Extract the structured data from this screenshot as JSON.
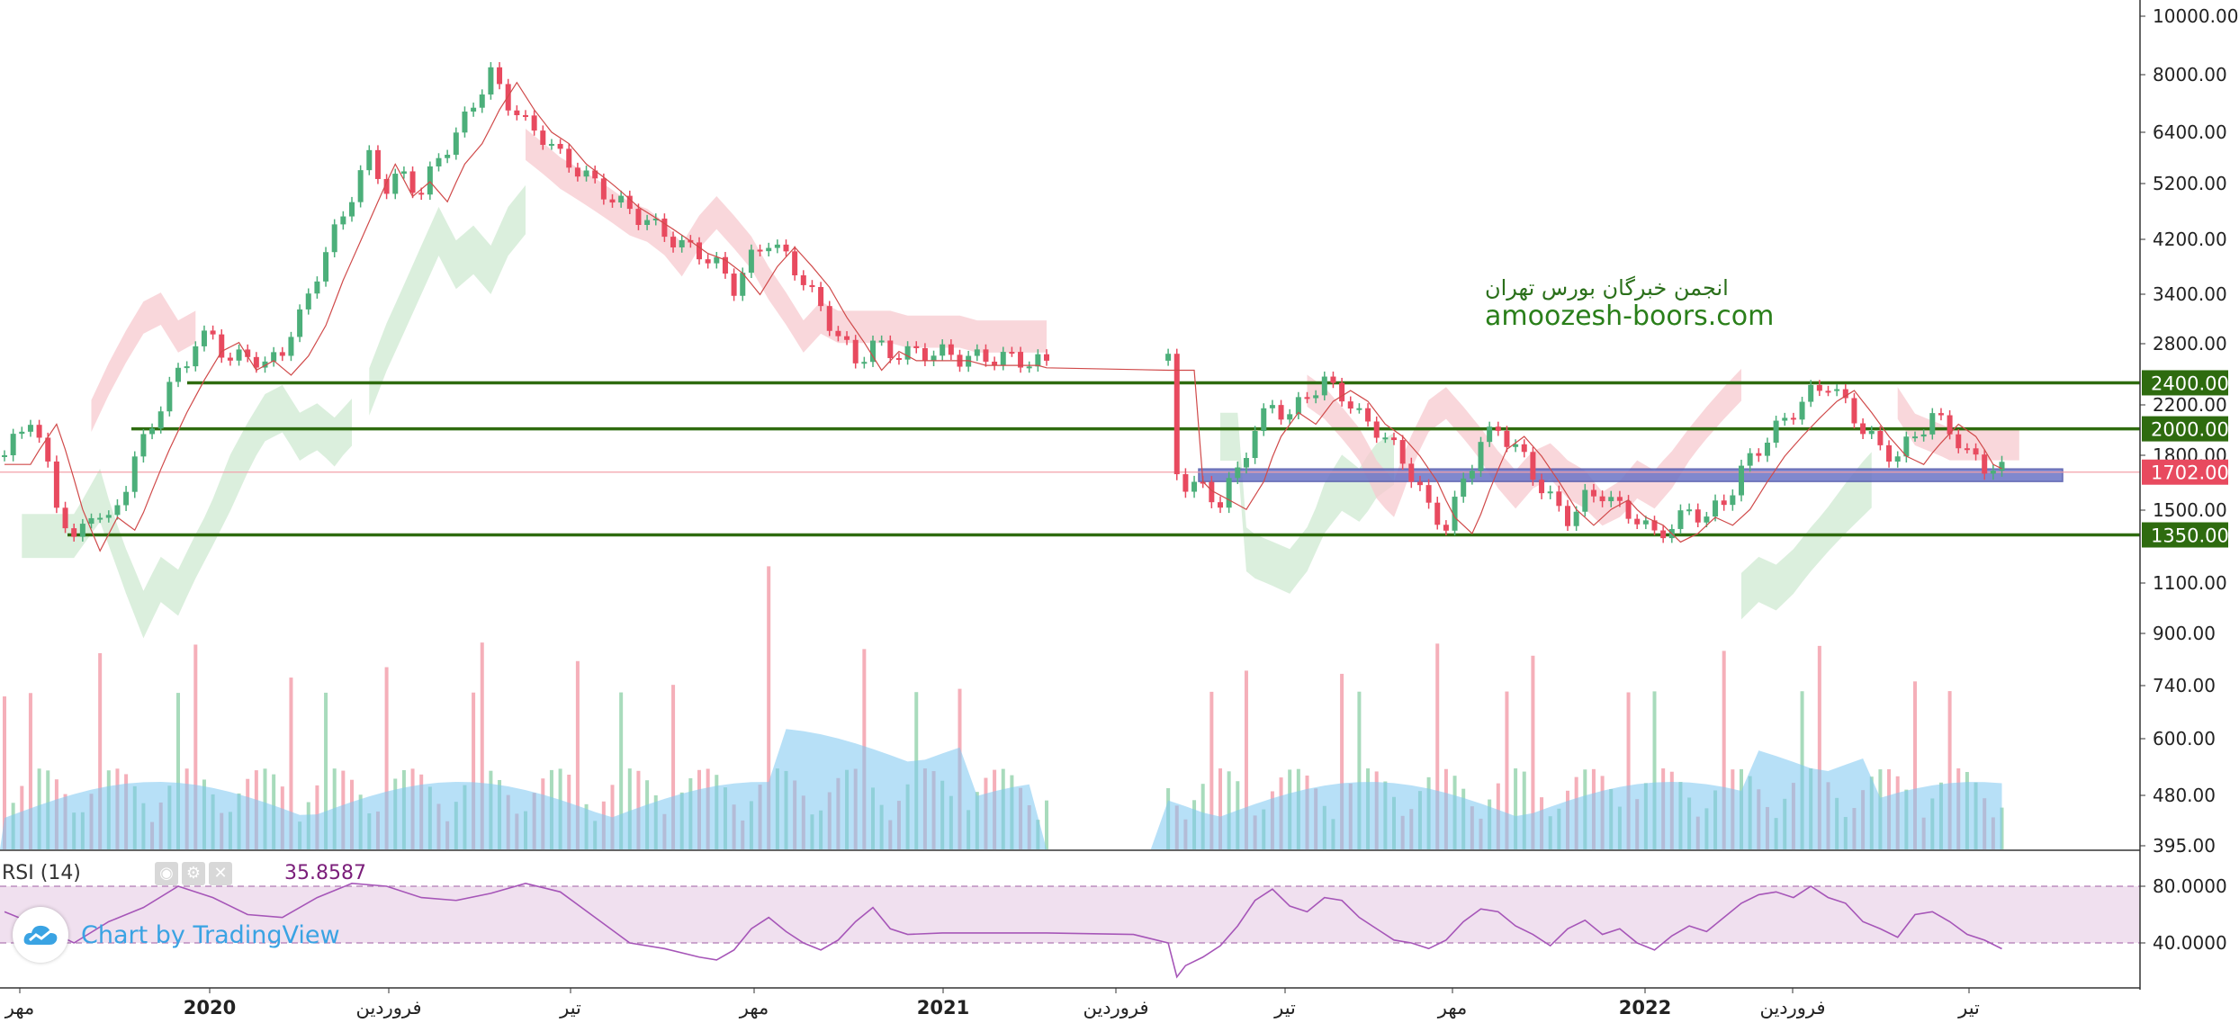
{
  "watermark": {
    "title_fa": "انجمن خبرگان بورس تهران",
    "site": "amoozesh-boors.com"
  },
  "rsi": {
    "label": "RSI (14)",
    "value": "35.8587",
    "levels": [
      80.0,
      40.0
    ],
    "axis_labels": [
      "80.0000",
      "40.0000"
    ]
  },
  "branding": {
    "text": "Chart by TradingView"
  },
  "colors": {
    "up": "#4caf7a",
    "down": "#e84a5f",
    "support_line": "#2e6b0f",
    "zone": "#6b74c6",
    "cloud_bull": "#cfe9d2",
    "cloud_bear": "#f7c9cf",
    "volume_ma": "#7cc6f0",
    "rsi_line": "#a656b8",
    "rsi_band": "#f0e0ef",
    "price_badge": "#e84a5f"
  },
  "chart_data": {
    "type": "candlestick",
    "y_scale": "log",
    "ylim": [
      1000,
      10000
    ],
    "price_axis_labels": [
      10000,
      8000,
      6400,
      5200,
      4200,
      3400,
      2800,
      2200,
      1800,
      1500,
      1100,
      900,
      740,
      600,
      480,
      395
    ],
    "price_axis_text": [
      "10000.00",
      "8000.00",
      "6400.00",
      "5200.00",
      "4200.00",
      "3400.00",
      "2800.00",
      "2200.00",
      "1800.00",
      "1500.00",
      "1100.00",
      "900.00",
      "740.00",
      "600.00",
      "480.00",
      "395.00"
    ],
    "horizontal_levels": [
      {
        "value": 2400,
        "label": "2400.00"
      },
      {
        "value": 2000,
        "label": "2000.00"
      },
      {
        "value": 1350,
        "label": "1350.00"
      }
    ],
    "last_price": {
      "value": 1702,
      "label": "1702.00"
    },
    "support_zone": {
      "from": 1650,
      "to": 1720
    },
    "x_axis_labels": [
      {
        "text": "مهر",
        "bold": false
      },
      {
        "text": "2020",
        "bold": true
      },
      {
        "text": "فروردین",
        "bold": false
      },
      {
        "text": "تیر",
        "bold": false
      },
      {
        "text": "مهر",
        "bold": false
      },
      {
        "text": "2021",
        "bold": true
      },
      {
        "text": "فروردین",
        "bold": false
      },
      {
        "text": "تیر",
        "bold": false
      },
      {
        "text": "مهر",
        "bold": false
      },
      {
        "text": "2022",
        "bold": true
      },
      {
        "text": "فروردین",
        "bold": false
      },
      {
        "text": "تیر",
        "bold": false
      }
    ],
    "price_path": [
      [
        0,
        1800
      ],
      [
        3,
        2100
      ],
      [
        6,
        1550
      ],
      [
        8,
        1300
      ],
      [
        10,
        1500
      ],
      [
        12,
        1420
      ],
      [
        14,
        1650
      ],
      [
        16,
        1900
      ],
      [
        18,
        2200
      ],
      [
        20,
        2500
      ],
      [
        22,
        2800
      ],
      [
        24,
        2900
      ],
      [
        26,
        2600
      ],
      [
        28,
        2700
      ],
      [
        30,
        2550
      ],
      [
        32,
        2750
      ],
      [
        34,
        3100
      ],
      [
        36,
        3700
      ],
      [
        38,
        4300
      ],
      [
        40,
        5000
      ],
      [
        42,
        5800
      ],
      [
        44,
        5100
      ],
      [
        46,
        5400
      ],
      [
        48,
        5000
      ],
      [
        50,
        5800
      ],
      [
        52,
        6300
      ],
      [
        54,
        7200
      ],
      [
        56,
        8000
      ],
      [
        58,
        7200
      ],
      [
        60,
        6600
      ],
      [
        62,
        6300
      ],
      [
        64,
        5800
      ],
      [
        66,
        5500
      ],
      [
        68,
        5200
      ],
      [
        70,
        4900
      ],
      [
        72,
        4700
      ],
      [
        74,
        4500
      ],
      [
        76,
        4300
      ],
      [
        78,
        4100
      ],
      [
        80,
        4000
      ],
      [
        82,
        3800
      ],
      [
        84,
        3500
      ],
      [
        86,
        3900
      ],
      [
        88,
        4200
      ],
      [
        90,
        3900
      ],
      [
        92,
        3600
      ],
      [
        94,
        3200
      ],
      [
        96,
        2900
      ],
      [
        98,
        2600
      ],
      [
        100,
        2800
      ],
      [
        102,
        2700
      ],
      [
        104,
        2700
      ],
      [
        106,
        2700
      ],
      [
        108,
        2700
      ],
      [
        110,
        2650
      ],
      [
        112,
        2650
      ],
      [
        114,
        2650
      ],
      [
        116,
        2650
      ],
      [
        118,
        2600
      ],
      [
        120,
        2600
      ],
      [
        134,
        2600
      ],
      [
        135,
        1700
      ],
      [
        136,
        1650
      ],
      [
        138,
        1600
      ],
      [
        140,
        1550
      ],
      [
        142,
        1700
      ],
      [
        144,
        2000
      ],
      [
        146,
        2200
      ],
      [
        148,
        2100
      ],
      [
        150,
        2300
      ],
      [
        152,
        2400
      ],
      [
        154,
        2300
      ],
      [
        156,
        2100
      ],
      [
        158,
        2000
      ],
      [
        160,
        1850
      ],
      [
        162,
        1700
      ],
      [
        164,
        1500
      ],
      [
        166,
        1400
      ],
      [
        168,
        1650
      ],
      [
        170,
        1900
      ],
      [
        172,
        2000
      ],
      [
        174,
        1850
      ],
      [
        176,
        1700
      ],
      [
        178,
        1550
      ],
      [
        180,
        1450
      ],
      [
        182,
        1550
      ],
      [
        184,
        1600
      ],
      [
        186,
        1500
      ],
      [
        188,
        1450
      ],
      [
        190,
        1350
      ],
      [
        192,
        1400
      ],
      [
        194,
        1500
      ],
      [
        196,
        1450
      ],
      [
        198,
        1550
      ],
      [
        200,
        1700
      ],
      [
        202,
        1850
      ],
      [
        204,
        2000
      ],
      [
        206,
        2150
      ],
      [
        208,
        2300
      ],
      [
        210,
        2400
      ],
      [
        212,
        2200
      ],
      [
        214,
        2000
      ],
      [
        216,
        1850
      ],
      [
        218,
        1800
      ],
      [
        220,
        1950
      ],
      [
        222,
        2100
      ],
      [
        224,
        2000
      ],
      [
        226,
        1800
      ],
      [
        228,
        1750
      ],
      [
        230,
        1702
      ]
    ],
    "volume_series_note": "",
    "rsi_path": [
      [
        0,
        62
      ],
      [
        4,
        52
      ],
      [
        8,
        40
      ],
      [
        12,
        55
      ],
      [
        16,
        65
      ],
      [
        20,
        80
      ],
      [
        24,
        72
      ],
      [
        28,
        60
      ],
      [
        32,
        58
      ],
      [
        36,
        72
      ],
      [
        40,
        82
      ],
      [
        44,
        80
      ],
      [
        48,
        72
      ],
      [
        52,
        70
      ],
      [
        56,
        75
      ],
      [
        60,
        82
      ],
      [
        64,
        76
      ],
      [
        68,
        58
      ],
      [
        72,
        40
      ],
      [
        76,
        36
      ],
      [
        80,
        30
      ],
      [
        82,
        28
      ],
      [
        84,
        35
      ],
      [
        86,
        50
      ],
      [
        88,
        58
      ],
      [
        90,
        48
      ],
      [
        92,
        40
      ],
      [
        94,
        35
      ],
      [
        96,
        42
      ],
      [
        98,
        55
      ],
      [
        100,
        65
      ],
      [
        102,
        50
      ],
      [
        104,
        46
      ],
      [
        108,
        47
      ],
      [
        112,
        47
      ],
      [
        116,
        47
      ],
      [
        120,
        47
      ],
      [
        130,
        46
      ],
      [
        134,
        40
      ],
      [
        135,
        16
      ],
      [
        136,
        24
      ],
      [
        138,
        30
      ],
      [
        140,
        38
      ],
      [
        142,
        52
      ],
      [
        144,
        70
      ],
      [
        146,
        78
      ],
      [
        148,
        66
      ],
      [
        150,
        62
      ],
      [
        152,
        72
      ],
      [
        154,
        70
      ],
      [
        156,
        58
      ],
      [
        158,
        50
      ],
      [
        160,
        42
      ],
      [
        162,
        40
      ],
      [
        164,
        36
      ],
      [
        166,
        42
      ],
      [
        168,
        55
      ],
      [
        170,
        64
      ],
      [
        172,
        62
      ],
      [
        174,
        52
      ],
      [
        176,
        46
      ],
      [
        178,
        38
      ],
      [
        180,
        50
      ],
      [
        182,
        56
      ],
      [
        184,
        46
      ],
      [
        186,
        50
      ],
      [
        188,
        40
      ],
      [
        190,
        35
      ],
      [
        192,
        45
      ],
      [
        194,
        52
      ],
      [
        196,
        48
      ],
      [
        198,
        58
      ],
      [
        200,
        68
      ],
      [
        202,
        74
      ],
      [
        204,
        76
      ],
      [
        206,
        72
      ],
      [
        208,
        80
      ],
      [
        210,
        72
      ],
      [
        212,
        68
      ],
      [
        214,
        55
      ],
      [
        216,
        50
      ],
      [
        218,
        44
      ],
      [
        220,
        60
      ],
      [
        222,
        62
      ],
      [
        224,
        55
      ],
      [
        226,
        46
      ],
      [
        228,
        42
      ],
      [
        230,
        35.86
      ]
    ]
  }
}
